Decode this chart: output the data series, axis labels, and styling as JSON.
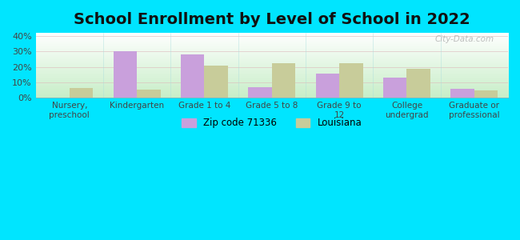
{
  "title": "School Enrollment by Level of School in 2022",
  "categories": [
    "Nursery,\npreschool",
    "Kindergarten",
    "Grade 1 to 4",
    "Grade 5 to 8",
    "Grade 9 to\n12",
    "College\nundergrad",
    "Graduate or\nprofessional"
  ],
  "zipcode_values": [
    0.0,
    30.0,
    28.0,
    7.0,
    15.5,
    13.0,
    6.0
  ],
  "louisiana_values": [
    6.5,
    5.5,
    21.0,
    22.5,
    22.5,
    19.0,
    5.0
  ],
  "zipcode_color": "#c9a0dc",
  "louisiana_color": "#c8cc9a",
  "background_outer": "#00e5ff",
  "gradient_top": "#ffffff",
  "gradient_bottom": "#c8eec8",
  "ylim": [
    0,
    42
  ],
  "yticks": [
    0,
    10,
    20,
    30,
    40
  ],
  "ytick_labels": [
    "0%",
    "10%",
    "20%",
    "30%",
    "40%"
  ],
  "legend_zip_label": "Zip code 71336",
  "legend_la_label": "Louisiana",
  "bar_width": 0.35,
  "title_fontsize": 14,
  "watermark_text": "City-Data.com"
}
